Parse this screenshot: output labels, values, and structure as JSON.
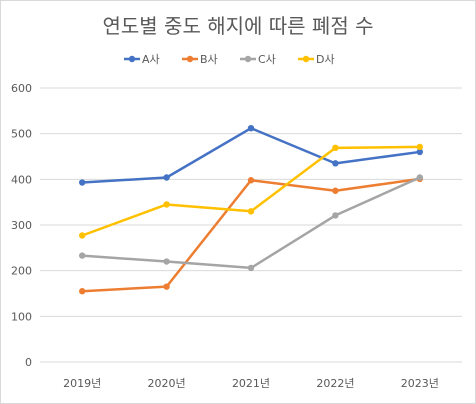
{
  "chart_data": {
    "type": "line",
    "title": "연도별 중도 해지에 따른 폐점 수",
    "categories": [
      "2019년",
      "2020년",
      "2021년",
      "2022년",
      "2023년"
    ],
    "ylim": [
      0,
      600
    ],
    "yticks": [
      0,
      100,
      200,
      300,
      400,
      500,
      600
    ],
    "grid": true,
    "legend_position": "top",
    "series": [
      {
        "name": "A사",
        "color": "#4472C4",
        "values": [
          393,
          404,
          512,
          435,
          460
        ]
      },
      {
        "name": "B사",
        "color": "#ED7D31",
        "values": [
          155,
          165,
          398,
          375,
          401
        ]
      },
      {
        "name": "C사",
        "color": "#A5A5A5",
        "values": [
          233,
          220,
          206,
          321,
          404
        ]
      },
      {
        "name": "D사",
        "color": "#FFC000",
        "values": [
          277,
          345,
          330,
          469,
          471
        ]
      }
    ]
  }
}
